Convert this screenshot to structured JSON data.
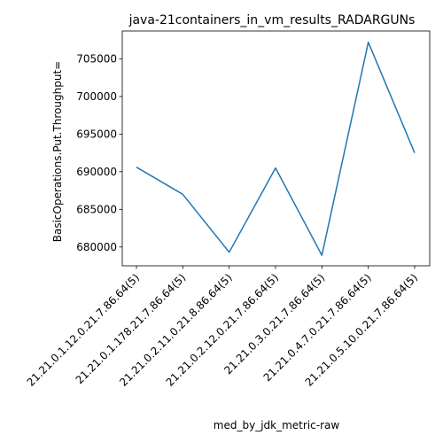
{
  "chart_data": {
    "type": "line",
    "title": "java-21containers_in_vm_results_RADARGUNs",
    "xlabel": "med_by_jdk_metric-raw",
    "ylabel": "BasicOperations.Put.Throughput=",
    "categories": [
      "21.21.0.1.12.0.21.7.86.64(5)",
      "21.21.0.1.178.21.7.86.64(5)",
      "21.21.0.2.11.0.21.8.86.64(5)",
      "21.21.0.2.12.0.21.7.86.64(5)",
      "21.21.0.3.0.21.7.86.64(5)",
      "21.21.0.4.7.0.21.7.86.64(5)",
      "21.21.0.5.10.0.21.7.86.64(5)"
    ],
    "series": [
      {
        "values": [
          690600,
          687000,
          679300,
          690500,
          678900,
          707200,
          692500
        ]
      }
    ],
    "ylim": [
      677500,
      708700
    ],
    "yticks": [
      680000,
      685000,
      690000,
      695000,
      700000,
      705000
    ],
    "ytick_labels": [
      "680000",
      "685000",
      "690000",
      "695000",
      "700000",
      "705000"
    ],
    "grid": false,
    "legend": "none",
    "line_color": "#1f77b4"
  }
}
